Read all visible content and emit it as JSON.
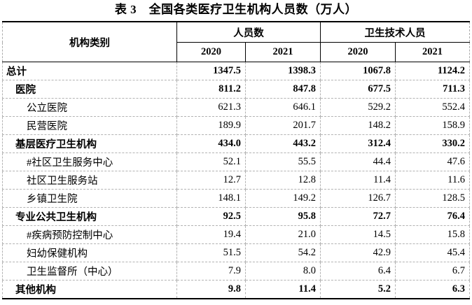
{
  "title": "表 3　全国各类医疗卫生机构人员数（万人）",
  "table": {
    "header": {
      "category": "机构类别",
      "groups": [
        {
          "label": "人员数",
          "years": [
            "2020",
            "2021"
          ]
        },
        {
          "label": "卫生技术人员",
          "years": [
            "2020",
            "2021"
          ]
        }
      ]
    },
    "rows": [
      {
        "label": "总计",
        "indent": 0,
        "bold": true,
        "values": [
          "1347.5",
          "1398.3",
          "1067.8",
          "1124.2"
        ]
      },
      {
        "label": "医院",
        "indent": 1,
        "bold": true,
        "values": [
          "811.2",
          "847.8",
          "677.5",
          "711.3"
        ]
      },
      {
        "label": "公立医院",
        "indent": 2,
        "bold": false,
        "values": [
          "621.3",
          "646.1",
          "529.2",
          "552.4"
        ]
      },
      {
        "label": "民营医院",
        "indent": 2,
        "bold": false,
        "values": [
          "189.9",
          "201.7",
          "148.2",
          "158.9"
        ]
      },
      {
        "label": "基层医疗卫生机构",
        "indent": 1,
        "bold": true,
        "values": [
          "434.0",
          "443.2",
          "312.4",
          "330.2"
        ]
      },
      {
        "label": "#社区卫生服务中心",
        "indent": 2,
        "bold": false,
        "values": [
          "52.1",
          "55.5",
          "44.4",
          "47.6"
        ]
      },
      {
        "label": "社区卫生服务站",
        "indent": 2,
        "bold": false,
        "values": [
          "12.7",
          "12.8",
          "11.4",
          "11.6"
        ]
      },
      {
        "label": "乡镇卫生院",
        "indent": 2,
        "bold": false,
        "values": [
          "148.1",
          "149.2",
          "126.7",
          "128.5"
        ]
      },
      {
        "label": "专业公共卫生机构",
        "indent": 1,
        "bold": true,
        "values": [
          "92.5",
          "95.8",
          "72.7",
          "76.4"
        ]
      },
      {
        "label": "#疾病预防控制中心",
        "indent": 2,
        "bold": false,
        "values": [
          "19.4",
          "21.0",
          "14.5",
          "15.8"
        ]
      },
      {
        "label": "妇幼保健机构",
        "indent": 2,
        "bold": false,
        "values": [
          "51.5",
          "54.2",
          "42.9",
          "45.4"
        ]
      },
      {
        "label": "卫生监督所（中心）",
        "indent": 2,
        "bold": false,
        "values": [
          "7.9",
          "8.0",
          "6.4",
          "6.7"
        ]
      },
      {
        "label": "其他机构",
        "indent": 1,
        "bold": true,
        "values": [
          "9.8",
          "11.4",
          "5.2",
          "6.3"
        ]
      }
    ]
  }
}
